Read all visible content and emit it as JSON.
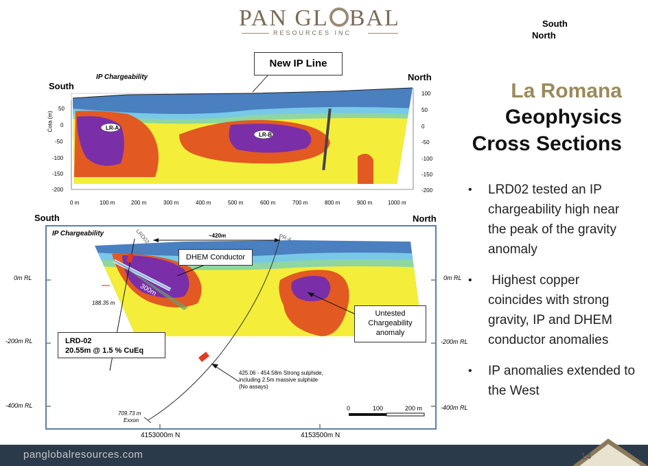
{
  "logo": {
    "main_left": "PAN GL",
    "main_right": "BAL",
    "sub": "RESOURCES INC"
  },
  "top_labels": {
    "south": "South",
    "north": "North"
  },
  "title": {
    "line1": "La Romana",
    "line2": "Geophysics",
    "line3": "Cross Sections"
  },
  "bullets": [
    "LRD02 tested an IP chargeability high near the peak of the gravity anomaly",
    " Highest copper coincides with strong gravity, IP and DHEM conductor anomalies",
    "IP anomalies extended to the West"
  ],
  "section1": {
    "title": "IP Chargeability",
    "south": "South",
    "north": "North",
    "callout": "New IP Line",
    "yaxis_label": "Cota (m)",
    "y_ticks_left": [
      "50",
      "0",
      "-50",
      "-100",
      "-150",
      "-200"
    ],
    "y_ticks_right": [
      "100",
      "50",
      "0",
      "-50",
      "-100",
      "-150",
      "-200"
    ],
    "x_ticks": [
      "0 m",
      "100 m",
      "200 m",
      "300 m",
      "400 m",
      "500 m",
      "600 m",
      "700 m",
      "800 m",
      "900 m",
      "1000 m"
    ],
    "anomaly_labels": [
      "LR-A",
      "LR-B"
    ]
  },
  "section2": {
    "title": "IP Chargeability",
    "south": "South",
    "north": "North",
    "hole_lrd": "LRD02",
    "hole_pr": "PR-4",
    "distance": "~420m",
    "dhem_label": "DHEM Conductor",
    "dhem_length": "300m",
    "depth_lrd": "188.35 m",
    "untested": [
      "Untested",
      "Chargeability",
      "anomaly"
    ],
    "lrd_box": [
      "LRD-02",
      "20.55m @ 1.5 % CuEq"
    ],
    "intercept": [
      "425.06 - 454.58m Strong sulphide,",
      "including 2.5m massive sulphide",
      "(No assays)"
    ],
    "exxon_depth": "709.73 m",
    "exxon": "Exxon",
    "rl_labels": [
      "0m RL",
      "-200m RL",
      "-400m RL"
    ],
    "scale": [
      "0",
      "100",
      "200 m"
    ],
    "northings": [
      "4153000m N",
      "4153500m N"
    ]
  },
  "footer": {
    "url": "panglobalresources.com",
    "page": "14"
  }
}
